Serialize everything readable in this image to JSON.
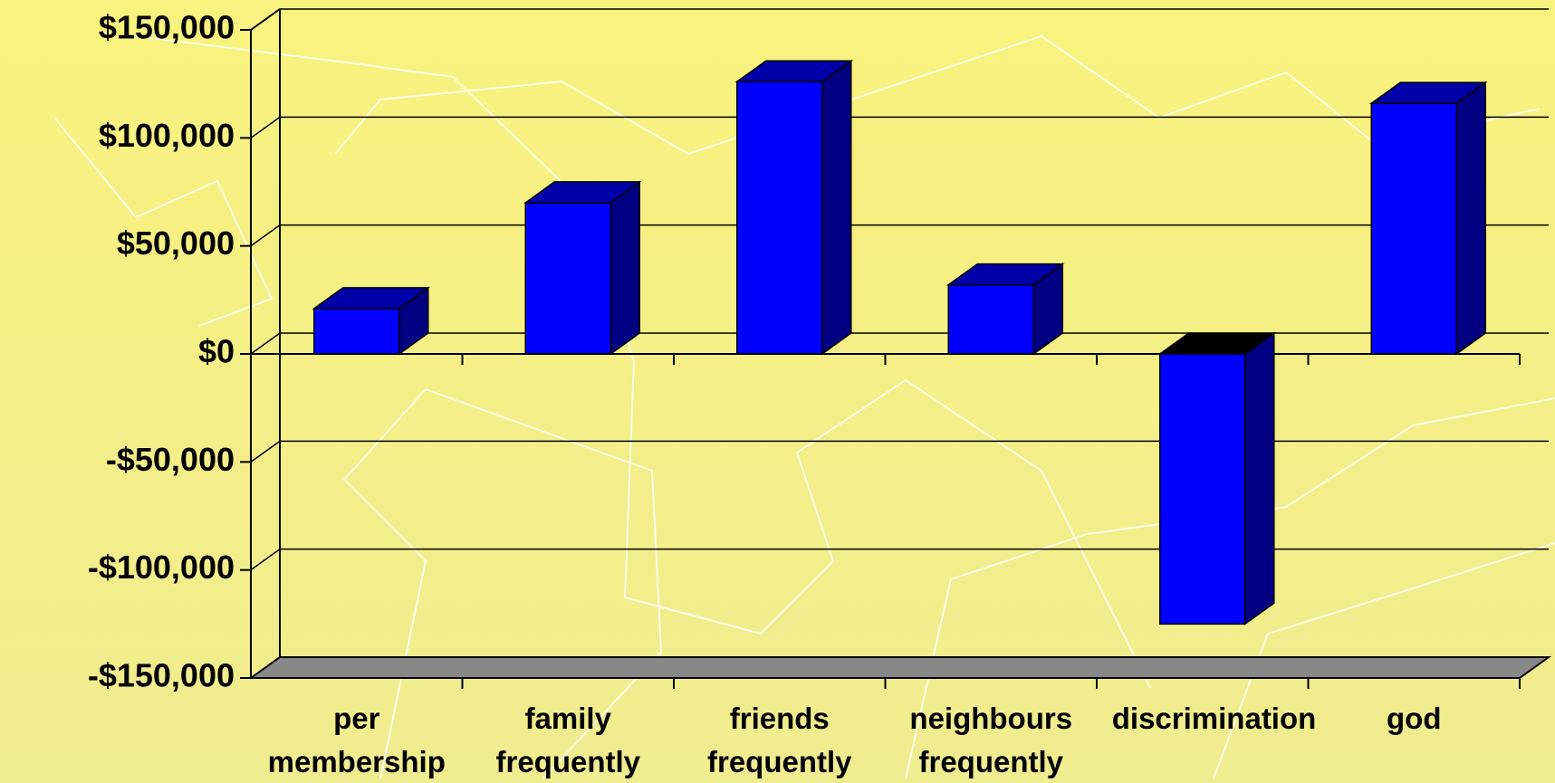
{
  "chart_data": {
    "type": "bar3d",
    "categories": [
      "per membership",
      "family frequently",
      "friends frequently",
      "neighbours frequently",
      "discrimination",
      "god"
    ],
    "values": [
      21000,
      70000,
      126000,
      32000,
      -125000,
      116000
    ],
    "color": "#0000ff",
    "ylim": [
      -150000,
      150000
    ],
    "yticks": [
      {
        "value": -150000,
        "label": "-$150,000"
      },
      {
        "value": -100000,
        "label": "-$100,000"
      },
      {
        "value": -50000,
        "label": "-$50,000"
      },
      {
        "value": 0,
        "label": "$0"
      },
      {
        "value": 50000,
        "label": "$50,000"
      },
      {
        "value": 100000,
        "label": "$100,000"
      },
      {
        "value": 150000,
        "label": "$150,000"
      }
    ],
    "grid": true
  }
}
